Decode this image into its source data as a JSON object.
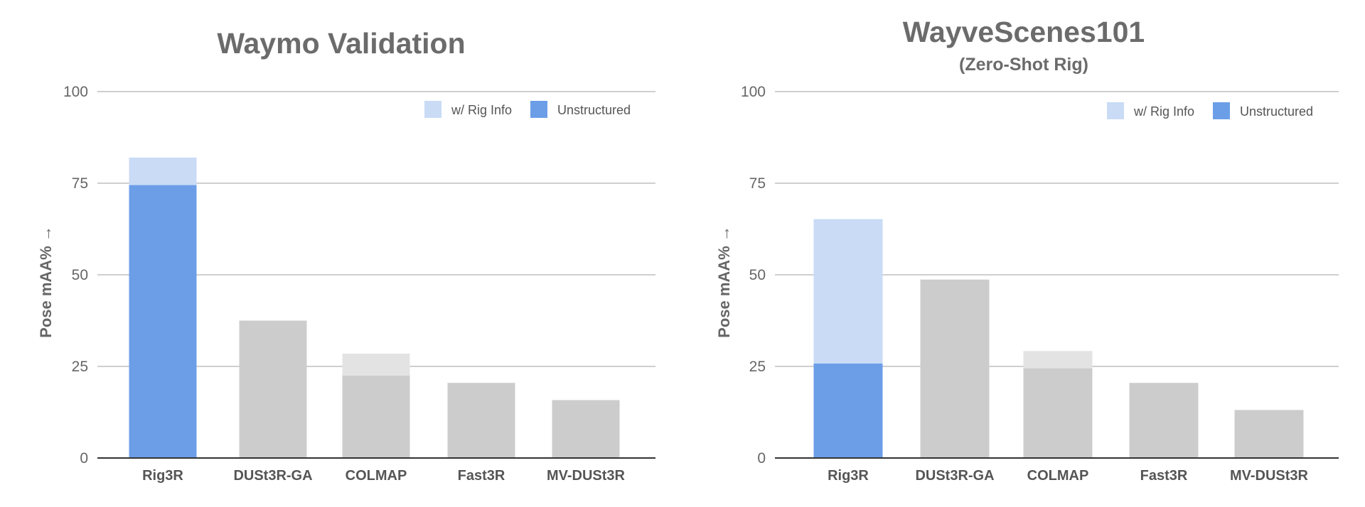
{
  "chart_data": [
    {
      "type": "bar",
      "stacked": true,
      "title": "Waymo Validation",
      "subtitle": "",
      "xlabel": "",
      "ylabel": "Pose mAA% →",
      "ylim": [
        0,
        100
      ],
      "yticks": [
        0,
        25,
        50,
        75,
        100
      ],
      "grid": true,
      "legend_position": "top-right",
      "categories": [
        "Rig3R",
        "DUSt3R-GA",
        "COLMAP",
        "Fast3R",
        "MV-DUSt3R"
      ],
      "series": [
        {
          "name": "Unstructured",
          "values": [
            74.5,
            37.5,
            22.5,
            20.5,
            15.8
          ]
        },
        {
          "name": "w/ Rig Info",
          "values": [
            7.5,
            0,
            6.0,
            0,
            0
          ]
        }
      ],
      "totals": [
        82.0,
        37.5,
        28.5,
        20.5,
        15.8
      ],
      "colors": {
        "highlight_base": "#6c9ee8",
        "highlight_top": "#c9dbf5",
        "other_base": "#cccccc",
        "other_top": "#e3e3e3",
        "gridline": "#cfcfcf",
        "axis": "#333333"
      },
      "highlight_category": "Rig3R"
    },
    {
      "type": "bar",
      "stacked": true,
      "title": "WayveScenes101",
      "subtitle": "(Zero-Shot Rig)",
      "xlabel": "",
      "ylabel": "Pose mAA% →",
      "ylim": [
        0,
        100
      ],
      "yticks": [
        0,
        25,
        50,
        75,
        100
      ],
      "grid": true,
      "legend_position": "top-right",
      "categories": [
        "Rig3R",
        "DUSt3R-GA",
        "COLMAP",
        "Fast3R",
        "MV-DUSt3R"
      ],
      "series": [
        {
          "name": "Unstructured",
          "values": [
            25.8,
            48.7,
            24.5,
            20.5,
            13.1
          ]
        },
        {
          "name": "w/ Rig Info",
          "values": [
            39.4,
            0,
            4.7,
            0,
            0
          ]
        }
      ],
      "totals": [
        65.2,
        48.7,
        29.2,
        20.5,
        13.1
      ],
      "colors": {
        "highlight_base": "#6c9ee8",
        "highlight_top": "#c9dbf5",
        "other_base": "#cccccc",
        "other_top": "#e3e3e3",
        "gridline": "#cfcfcf",
        "axis": "#333333"
      },
      "highlight_category": "Rig3R"
    }
  ]
}
